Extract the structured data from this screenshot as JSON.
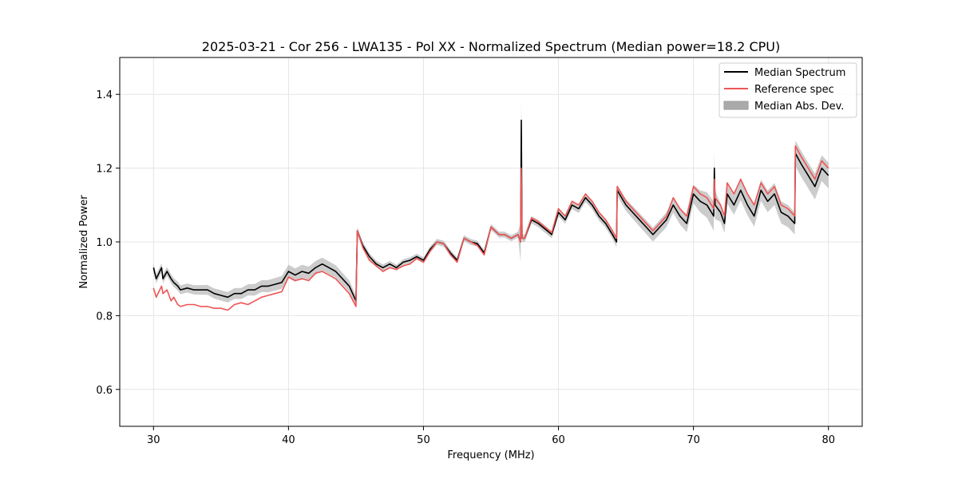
{
  "chart_data": {
    "type": "line",
    "title": "2025-03-21 - Cor 256 - LWA135 - Pol XX - Normalized Spectrum (Median power=18.2 CPU)",
    "xlabel": "Frequency (MHz)",
    "ylabel": "Normalized Power",
    "xlim": [
      27.5,
      82.5
    ],
    "ylim": [
      0.5,
      1.5
    ],
    "xticks": [
      30,
      40,
      50,
      60,
      70,
      80
    ],
    "yticks": [
      0.6,
      0.8,
      1.0,
      1.2,
      1.4
    ],
    "grid": true,
    "legend_location": "top-right",
    "legend": [
      "Median Spectrum",
      "Reference spec",
      "Median Abs. Dev."
    ],
    "colors": {
      "median": "#000000",
      "reference": "#ee5555",
      "mad": "#aaaaaa"
    },
    "series": [
      {
        "name": "Median Spectrum",
        "x": [
          30.0,
          30.2,
          30.6,
          30.7,
          31.0,
          31.3,
          31.5,
          31.8,
          32.0,
          32.5,
          33.0,
          33.5,
          34.0,
          34.5,
          35.0,
          35.5,
          36.0,
          36.5,
          37.0,
          37.5,
          38.0,
          38.5,
          39.0,
          39.5,
          40.0,
          40.5,
          41.0,
          41.5,
          42.0,
          42.5,
          43.0,
          43.5,
          44.0,
          44.5,
          45.0,
          45.1,
          45.2,
          45.5,
          46.0,
          46.5,
          47.0,
          47.5,
          48.0,
          48.5,
          49.0,
          49.5,
          50.0,
          50.5,
          51.0,
          51.5,
          52.0,
          52.5,
          53.0,
          53.5,
          54.0,
          54.5,
          55.0,
          55.3,
          55.6,
          56.0,
          56.5,
          57.0,
          57.2,
          57.25,
          57.3,
          57.5,
          58.0,
          58.5,
          59.0,
          59.5,
          60.0,
          60.5,
          61.0,
          61.5,
          62.0,
          62.5,
          63.0,
          63.5,
          64.0,
          64.3,
          64.35,
          65.0,
          65.5,
          66.0,
          66.5,
          67.0,
          67.5,
          68.0,
          68.5,
          69.0,
          69.5,
          70.0,
          70.5,
          71.0,
          71.5,
          71.55,
          71.6,
          72.0,
          72.3,
          72.5,
          73.0,
          73.5,
          74.0,
          74.5,
          75.0,
          75.5,
          76.0,
          76.5,
          77.0,
          77.5,
          77.55,
          78.0,
          78.5,
          79.0,
          79.5,
          80.0
        ],
        "values": [
          0.93,
          0.9,
          0.93,
          0.9,
          0.92,
          0.9,
          0.89,
          0.88,
          0.87,
          0.875,
          0.87,
          0.87,
          0.87,
          0.86,
          0.855,
          0.85,
          0.86,
          0.86,
          0.87,
          0.87,
          0.88,
          0.88,
          0.885,
          0.89,
          0.92,
          0.91,
          0.92,
          0.915,
          0.93,
          0.94,
          0.93,
          0.92,
          0.9,
          0.88,
          0.84,
          1.03,
          1.02,
          0.99,
          0.96,
          0.94,
          0.93,
          0.94,
          0.93,
          0.945,
          0.95,
          0.96,
          0.95,
          0.98,
          1.0,
          0.995,
          0.97,
          0.95,
          1.01,
          1.0,
          0.995,
          0.97,
          1.04,
          1.03,
          1.02,
          1.02,
          1.01,
          1.02,
          1.0,
          1.33,
          1.01,
          1.01,
          1.06,
          1.05,
          1.035,
          1.02,
          1.08,
          1.06,
          1.1,
          1.09,
          1.12,
          1.1,
          1.07,
          1.05,
          1.02,
          1.0,
          1.14,
          1.1,
          1.08,
          1.06,
          1.04,
          1.02,
          1.04,
          1.06,
          1.1,
          1.07,
          1.05,
          1.13,
          1.11,
          1.1,
          1.07,
          1.2,
          1.1,
          1.08,
          1.05,
          1.13,
          1.1,
          1.14,
          1.1,
          1.07,
          1.14,
          1.11,
          1.13,
          1.08,
          1.07,
          1.05,
          1.24,
          1.21,
          1.18,
          1.15,
          1.2,
          1.18
        ]
      },
      {
        "name": "Reference spec",
        "x": [
          30.0,
          30.2,
          30.6,
          30.7,
          31.0,
          31.3,
          31.5,
          31.8,
          32.0,
          32.5,
          33.0,
          33.5,
          34.0,
          34.5,
          35.0,
          35.5,
          36.0,
          36.5,
          37.0,
          37.5,
          38.0,
          38.5,
          39.0,
          39.5,
          40.0,
          40.5,
          41.0,
          41.5,
          42.0,
          42.5,
          43.0,
          43.5,
          44.0,
          44.5,
          45.0,
          45.1,
          45.2,
          45.5,
          46.0,
          46.5,
          47.0,
          47.5,
          48.0,
          48.5,
          49.0,
          49.5,
          50.0,
          50.5,
          51.0,
          51.5,
          52.0,
          52.5,
          53.0,
          53.5,
          54.0,
          54.5,
          55.0,
          55.3,
          55.6,
          56.0,
          56.5,
          57.0,
          57.2,
          57.25,
          57.3,
          57.5,
          58.0,
          58.5,
          59.0,
          59.5,
          60.0,
          60.5,
          61.0,
          61.5,
          62.0,
          62.5,
          63.0,
          63.5,
          64.0,
          64.3,
          64.35,
          65.0,
          65.5,
          66.0,
          66.5,
          67.0,
          67.5,
          68.0,
          68.5,
          69.0,
          69.5,
          70.0,
          70.5,
          71.0,
          71.5,
          71.55,
          71.6,
          72.0,
          72.3,
          72.5,
          73.0,
          73.5,
          74.0,
          74.5,
          75.0,
          75.5,
          76.0,
          76.5,
          77.0,
          77.5,
          77.55,
          78.0,
          78.5,
          79.0,
          79.5,
          80.0
        ],
        "values": [
          0.875,
          0.85,
          0.88,
          0.86,
          0.87,
          0.84,
          0.85,
          0.83,
          0.825,
          0.83,
          0.83,
          0.825,
          0.825,
          0.82,
          0.82,
          0.815,
          0.83,
          0.835,
          0.83,
          0.84,
          0.85,
          0.855,
          0.86,
          0.865,
          0.905,
          0.895,
          0.9,
          0.895,
          0.915,
          0.92,
          0.91,
          0.9,
          0.88,
          0.86,
          0.825,
          1.03,
          1.02,
          0.985,
          0.95,
          0.935,
          0.92,
          0.93,
          0.925,
          0.935,
          0.94,
          0.955,
          0.945,
          0.975,
          1.0,
          0.995,
          0.965,
          0.945,
          1.01,
          1.0,
          0.99,
          0.965,
          1.04,
          1.03,
          1.02,
          1.02,
          1.01,
          1.02,
          1.0,
          1.2,
          1.01,
          1.01,
          1.065,
          1.055,
          1.04,
          1.025,
          1.09,
          1.07,
          1.11,
          1.1,
          1.13,
          1.11,
          1.08,
          1.06,
          1.03,
          1.01,
          1.15,
          1.11,
          1.09,
          1.07,
          1.05,
          1.03,
          1.05,
          1.07,
          1.12,
          1.09,
          1.07,
          1.15,
          1.13,
          1.12,
          1.09,
          1.17,
          1.12,
          1.1,
          1.07,
          1.16,
          1.13,
          1.17,
          1.13,
          1.1,
          1.16,
          1.13,
          1.15,
          1.1,
          1.09,
          1.07,
          1.26,
          1.23,
          1.2,
          1.17,
          1.22,
          1.2
        ]
      },
      {
        "name": "Median Abs. Dev.",
        "type": "band",
        "x": [
          30.0,
          32.0,
          35.0,
          38.0,
          40.0,
          42.0,
          44.0,
          45.0,
          45.1,
          48.0,
          50.0,
          52.0,
          54.0,
          55.0,
          57.0,
          57.25,
          57.3,
          60.0,
          62.0,
          64.0,
          64.35,
          66.0,
          68.0,
          70.0,
          71.55,
          72.0,
          74.0,
          76.0,
          77.5,
          77.55,
          79.0,
          80.0
        ],
        "delta": [
          0.012,
          0.012,
          0.014,
          0.016,
          0.018,
          0.018,
          0.016,
          0.015,
          0.01,
          0.008,
          0.008,
          0.008,
          0.008,
          0.008,
          0.008,
          0.065,
          0.01,
          0.01,
          0.012,
          0.012,
          0.015,
          0.018,
          0.02,
          0.025,
          0.04,
          0.025,
          0.028,
          0.03,
          0.03,
          0.035,
          0.035,
          0.035
        ]
      }
    ]
  }
}
